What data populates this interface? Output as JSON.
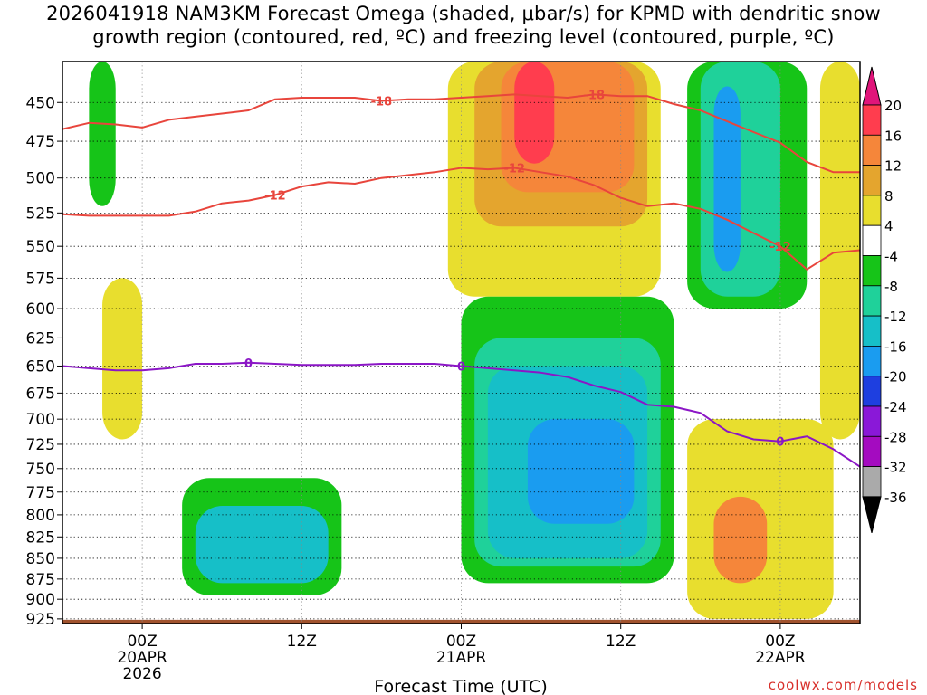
{
  "title": {
    "line1": "2026041918 NAM3KM Forecast Omega (shaded, μbar/s) for KPMD with dendritic snow",
    "line2": "growth region (contoured, red, ºC) and freezing level (contoured, purple, ºC)"
  },
  "credit": "coolwx.com/models",
  "chart_data": {
    "type": "heatmap",
    "xlabel": "Forecast Time (UTC)",
    "ylabel": "",
    "x_ticks": [
      {
        "value": 6,
        "lines": [
          "00Z",
          "20APR",
          "2026"
        ]
      },
      {
        "value": 18,
        "lines": [
          "12Z"
        ]
      },
      {
        "value": 30,
        "lines": [
          "00Z",
          "21APR"
        ]
      },
      {
        "value": 42,
        "lines": [
          "12Z"
        ]
      },
      {
        "value": 54,
        "lines": [
          "00Z",
          "22APR"
        ]
      }
    ],
    "xlim": [
      0,
      60
    ],
    "y_ticks": [
      450,
      475,
      500,
      525,
      550,
      575,
      600,
      625,
      650,
      675,
      700,
      725,
      750,
      775,
      800,
      825,
      850,
      875,
      900,
      925
    ],
    "ylim": [
      425,
      931
    ],
    "y_scale": "log-pressure (inverted)",
    "grid": true,
    "colorbar": {
      "labels": [
        20,
        16,
        12,
        8,
        4,
        -4,
        -8,
        -12,
        -16,
        -20,
        -24,
        -28,
        -32,
        -36
      ],
      "colors": [
        "#ff3d4e",
        "#f5863a",
        "#e4a52e",
        "#e8de2e",
        "#ffffff",
        "#16c418",
        "#1fd19a",
        "#16bfc8",
        "#1a9cf0",
        "#1e3fe0",
        "#8a18d8",
        "#a40bc0",
        "#aaaaaa"
      ],
      "max_color": "#e0157a",
      "min_color": "#000000"
    },
    "regions": [
      {
        "name": "green-column-early",
        "level": -4,
        "x": [
          2,
          4
        ],
        "p": [
          425,
          520
        ]
      },
      {
        "name": "yellow-upper-day2",
        "level": 4,
        "x": [
          29,
          45
        ],
        "p": [
          425,
          590
        ]
      },
      {
        "name": "gold-upper-day2",
        "level": 8,
        "x": [
          31,
          44
        ],
        "p": [
          425,
          535
        ]
      },
      {
        "name": "orange-upper-day2",
        "level": 12,
        "x": [
          33,
          43
        ],
        "p": [
          425,
          510
        ]
      },
      {
        "name": "red-core-upper",
        "level": 16,
        "x": [
          34,
          37
        ],
        "p": [
          425,
          490
        ]
      },
      {
        "name": "green-right-column",
        "level": -4,
        "x": [
          47,
          56
        ],
        "p": [
          425,
          600
        ]
      },
      {
        "name": "teal-right-column",
        "level": -8,
        "x": [
          48,
          54
        ],
        "p": [
          425,
          590
        ]
      },
      {
        "name": "blue-right-core",
        "level": -16,
        "x": [
          49,
          51
        ],
        "p": [
          440,
          570
        ]
      },
      {
        "name": "yellow-far-right",
        "level": 4,
        "x": [
          57,
          60
        ],
        "p": [
          425,
          720
        ]
      },
      {
        "name": "green-central-blob",
        "level": -4,
        "x": [
          30,
          46
        ],
        "p": [
          590,
          880
        ]
      },
      {
        "name": "teal-central-blob",
        "level": -8,
        "x": [
          31,
          45
        ],
        "p": [
          625,
          860
        ]
      },
      {
        "name": "cyan-central-blob",
        "level": -12,
        "x": [
          32,
          44
        ],
        "p": [
          650,
          850
        ]
      },
      {
        "name": "blue-central-core",
        "level": -16,
        "x": [
          35,
          43
        ],
        "p": [
          700,
          810
        ]
      },
      {
        "name": "green-lower-left",
        "level": -4,
        "x": [
          9,
          21
        ],
        "p": [
          760,
          895
        ]
      },
      {
        "name": "cyan-lower-left",
        "level": -12,
        "x": [
          10,
          20
        ],
        "p": [
          790,
          880
        ]
      },
      {
        "name": "yellow-lower-right",
        "level": 4,
        "x": [
          47,
          58
        ],
        "p": [
          700,
          925
        ]
      },
      {
        "name": "orange-lower-right",
        "level": 12,
        "x": [
          49,
          53
        ],
        "p": [
          780,
          880
        ]
      },
      {
        "name": "yellow-left-column",
        "level": 4,
        "x": [
          3,
          6
        ],
        "p": [
          575,
          720
        ]
      }
    ],
    "series": [
      {
        "name": "dendritic -18",
        "color": "#e8453c",
        "label_text": "-18",
        "x": [
          0,
          2,
          4,
          6,
          8,
          10,
          12,
          14,
          16,
          18,
          20,
          22,
          24,
          26,
          28,
          30,
          32,
          34,
          36,
          38,
          40,
          42,
          44,
          46,
          48,
          50,
          52,
          54,
          56,
          58,
          60
        ],
        "p": [
          467,
          463,
          464,
          466,
          461,
          459,
          457,
          455,
          448,
          447,
          447,
          447,
          449,
          448,
          448,
          447,
          446,
          445,
          446,
          447,
          445,
          446,
          446,
          451,
          455,
          462,
          469,
          476,
          489,
          496,
          496
        ]
      },
      {
        "name": "dendritic -12",
        "color": "#e8453c",
        "label_text": "-12",
        "x": [
          0,
          2,
          4,
          6,
          8,
          10,
          12,
          14,
          16,
          18,
          20,
          22,
          24,
          26,
          28,
          30,
          32,
          34,
          36,
          38,
          40,
          42,
          44,
          46,
          48,
          50,
          52,
          54,
          56,
          58,
          60
        ],
        "p": [
          526,
          527,
          527,
          527,
          527,
          524,
          518,
          516,
          512,
          506,
          503,
          504,
          500,
          498,
          496,
          493,
          494,
          493,
          496,
          499,
          505,
          514,
          520,
          518,
          522,
          530,
          540,
          550,
          568,
          555,
          553
        ]
      },
      {
        "name": "freezing level 0",
        "color": "#8b16c6",
        "label_text": "0",
        "x": [
          0,
          2,
          4,
          6,
          8,
          10,
          12,
          14,
          16,
          18,
          20,
          22,
          24,
          26,
          28,
          30,
          32,
          34,
          36,
          38,
          40,
          42,
          44,
          46,
          48,
          50,
          52,
          54,
          56,
          58,
          60
        ],
        "p": [
          650,
          652,
          654,
          654,
          652,
          648,
          648,
          647,
          648,
          649,
          649,
          649,
          648,
          648,
          648,
          650,
          652,
          654,
          656,
          660,
          668,
          674,
          686,
          688,
          694,
          712,
          720,
          722,
          717,
          730,
          748
        ]
      }
    ]
  }
}
